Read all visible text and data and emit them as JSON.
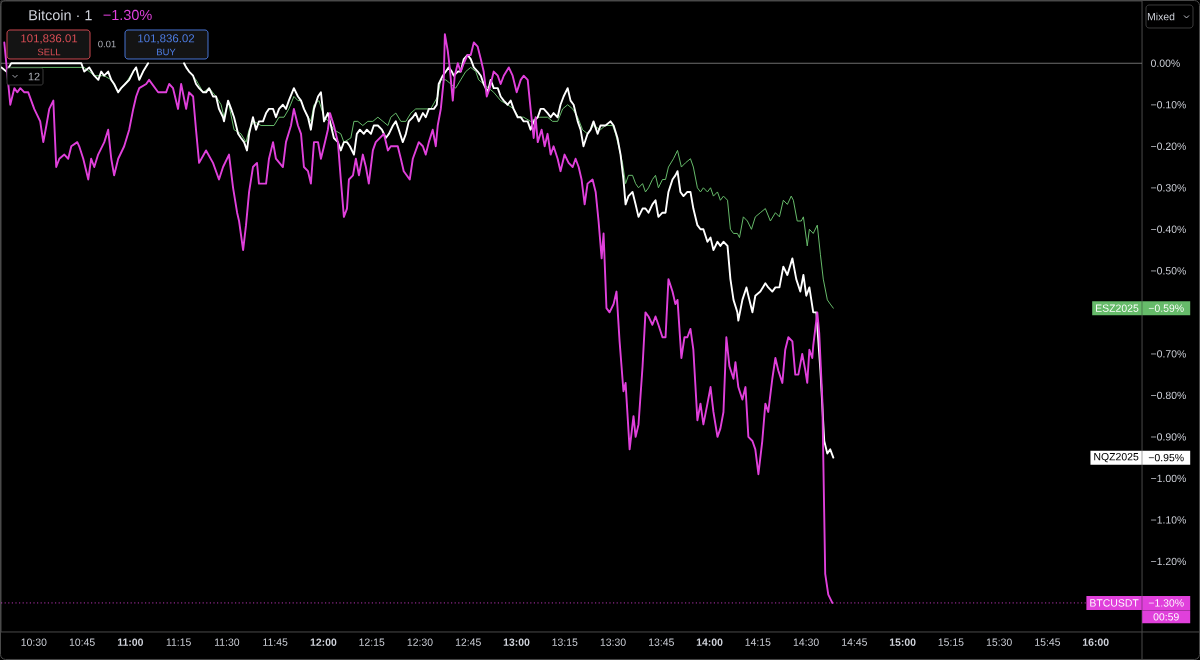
{
  "chart_data": {
    "type": "line",
    "title": "Bitcoin · 1",
    "subtitle": "−1.30%",
    "legend": "right",
    "xlim": [
      10.33,
      16.24
    ],
    "ylim": [
      -1.37,
      0.15
    ],
    "xticks": [
      {
        "value": 10.5,
        "label": "10:30"
      },
      {
        "value": 10.75,
        "label": "10:45"
      },
      {
        "value": 11,
        "label": "11:00"
      },
      {
        "value": 11.25,
        "label": "11:15"
      },
      {
        "value": 11.5,
        "label": "11:30"
      },
      {
        "value": 11.75,
        "label": "11:45"
      },
      {
        "value": 12,
        "label": "12:00"
      },
      {
        "value": 12.25,
        "label": "12:15"
      },
      {
        "value": 12.5,
        "label": "12:30"
      },
      {
        "value": 12.75,
        "label": "12:45"
      },
      {
        "value": 13,
        "label": "13:00"
      },
      {
        "value": 13.25,
        "label": "13:15"
      },
      {
        "value": 13.5,
        "label": "13:30"
      },
      {
        "value": 13.75,
        "label": "13:45"
      },
      {
        "value": 14,
        "label": "14:00"
      },
      {
        "value": 14.25,
        "label": "14:15"
      },
      {
        "value": 14.5,
        "label": "14:30"
      },
      {
        "value": 14.75,
        "label": "14:45"
      },
      {
        "value": 15,
        "label": "15:00"
      },
      {
        "value": 15.25,
        "label": "15:15"
      },
      {
        "value": 15.5,
        "label": "15:30"
      },
      {
        "value": 15.75,
        "label": "15:45"
      },
      {
        "value": 16,
        "label": "16:00"
      }
    ],
    "yticks": [
      {
        "value": 0,
        "label": "0.00%"
      },
      {
        "value": -0.1,
        "label": "−0.10%"
      },
      {
        "value": -0.2,
        "label": "−0.20%"
      },
      {
        "value": -0.3,
        "label": "−0.30%"
      },
      {
        "value": -0.4,
        "label": "−0.40%"
      },
      {
        "value": -0.5,
        "label": "−0.50%"
      },
      {
        "value": -0.7,
        "label": "−0.70%"
      },
      {
        "value": -0.8,
        "label": "−0.80%"
      },
      {
        "value": -0.9,
        "label": "−0.90%"
      },
      {
        "value": -1.0,
        "label": "−1.00%"
      },
      {
        "value": -1.1,
        "label": "−1.10%"
      },
      {
        "value": -1.2,
        "label": "−1.20%"
      }
    ],
    "ref_lines": [
      {
        "axis": "y",
        "value": 0,
        "color": "#8a8a8a"
      },
      {
        "axis": "y",
        "value": -1.3,
        "color": "#e040db",
        "line_style": "dotted"
      }
    ],
    "annotations": [
      "101,836.01",
      "SELL",
      "0.01",
      "101,836.02",
      "BUY",
      "12",
      "Mixed",
      "−0.59%",
      "−0.95%",
      "−1.30%",
      "00:59"
    ],
    "series": [
      {
        "name": "ESZ2025",
        "color": "#66bb6a",
        "x": [
          10.332,
          10.358,
          10.383,
          10.539,
          10.73,
          10.761,
          10.787,
          10.813,
          10.834,
          10.864,
          10.901,
          10.937,
          10.973,
          11.015,
          11.03,
          11.046,
          11.066,
          11.092,
          11.159,
          11.237,
          11.278,
          11.304,
          11.34,
          11.377,
          11.408,
          11.444,
          11.47,
          11.485,
          11.506,
          11.537,
          11.573,
          11.599,
          11.615,
          11.64,
          11.677,
          11.713,
          11.744,
          11.77,
          11.796,
          11.821,
          11.847,
          11.868,
          11.884,
          11.909,
          11.935,
          11.951,
          11.977,
          12.003,
          12.028,
          12.054,
          12.09,
          12.106,
          12.142,
          12.158,
          12.178,
          12.204,
          12.23,
          12.256,
          12.282,
          12.308,
          12.334,
          12.349,
          12.375,
          12.401,
          12.427,
          12.453,
          12.478,
          12.504,
          12.53,
          12.556,
          12.592,
          12.608,
          12.634,
          12.66,
          12.685,
          12.711,
          12.737,
          12.763,
          12.789,
          12.804,
          12.83,
          12.856,
          12.882,
          12.918,
          12.954,
          12.985,
          13.011,
          13.037,
          13.073,
          13.11,
          13.135,
          13.161,
          13.187,
          13.213,
          13.239,
          13.265,
          13.291,
          13.317,
          13.342,
          13.368,
          13.399,
          13.435,
          13.461,
          13.498,
          13.513,
          13.529,
          13.549,
          13.565,
          13.58,
          13.601,
          13.617,
          13.632,
          13.653,
          13.668,
          13.684,
          13.704,
          13.72,
          13.735,
          13.756,
          13.772,
          13.787,
          13.813,
          13.834,
          13.854,
          13.875,
          13.901,
          13.916,
          13.937,
          13.953,
          13.968,
          13.989,
          14.005,
          14.02,
          14.041,
          14.056,
          14.072,
          14.093,
          14.108,
          14.124,
          14.144,
          14.155,
          14.175,
          14.196,
          14.217,
          14.237,
          14.263,
          14.289,
          14.315,
          14.341,
          14.362,
          14.382,
          14.403,
          14.423,
          14.434,
          14.454,
          14.475,
          14.486,
          14.506,
          14.517,
          14.537,
          14.558,
          14.574,
          14.589,
          14.61,
          14.625,
          14.641
        ],
        "values": [
          -0.01,
          -0.02,
          -0.01,
          -0.01,
          -0.01,
          -0.01,
          -0.02,
          -0.03,
          -0.03,
          -0.03,
          -0.04,
          -0.07,
          -0.05,
          -0.02,
          -0.01,
          -0.04,
          -0.02,
          0.0,
          null,
          null,
          0.0,
          -0.02,
          -0.04,
          -0.07,
          -0.06,
          -0.08,
          -0.1,
          -0.13,
          -0.09,
          -0.16,
          -0.17,
          -0.19,
          -0.16,
          -0.14,
          -0.15,
          -0.15,
          -0.15,
          -0.13,
          -0.13,
          -0.11,
          -0.08,
          -0.09,
          -0.09,
          -0.12,
          -0.14,
          -0.1,
          -0.09,
          -0.13,
          -0.14,
          -0.16,
          -0.17,
          -0.19,
          -0.18,
          -0.14,
          -0.14,
          -0.15,
          -0.14,
          -0.14,
          -0.13,
          -0.14,
          -0.15,
          -0.13,
          -0.12,
          -0.14,
          -0.14,
          -0.12,
          -0.11,
          -0.11,
          -0.11,
          -0.11,
          -0.08,
          -0.04,
          -0.04,
          -0.05,
          -0.06,
          -0.04,
          -0.02,
          -0.01,
          -0.02,
          -0.04,
          -0.05,
          -0.06,
          -0.07,
          -0.09,
          -0.1,
          -0.11,
          -0.13,
          -0.13,
          -0.14,
          -0.13,
          -0.13,
          -0.13,
          -0.14,
          -0.14,
          -0.11,
          -0.1,
          -0.11,
          -0.13,
          -0.16,
          -0.17,
          -0.15,
          -0.16,
          -0.15,
          -0.15,
          -0.17,
          -0.2,
          -0.24,
          -0.29,
          -0.27,
          -0.27,
          -0.29,
          -0.3,
          -0.29,
          -0.31,
          -0.3,
          -0.28,
          -0.27,
          -0.3,
          -0.28,
          -0.28,
          -0.25,
          -0.23,
          -0.21,
          -0.25,
          -0.24,
          -0.23,
          -0.25,
          -0.3,
          -0.31,
          -0.3,
          -0.31,
          -0.3,
          -0.32,
          -0.31,
          -0.33,
          -0.32,
          -0.33,
          -0.4,
          -0.41,
          -0.41,
          -0.42,
          -0.37,
          -0.38,
          -0.4,
          -0.37,
          -0.36,
          -0.35,
          -0.38,
          -0.36,
          -0.37,
          -0.33,
          -0.34,
          -0.32,
          -0.33,
          -0.38,
          -0.38,
          -0.37,
          -0.44,
          -0.4,
          -0.41,
          -0.39,
          -0.46,
          -0.52,
          -0.57,
          -0.58,
          -0.59
        ]
      },
      {
        "name": "NQZ2025",
        "color": "#ffffff",
        "x": [
          10.332,
          10.358,
          10.383,
          10.539,
          10.72,
          10.746,
          10.761,
          10.787,
          10.813,
          10.834,
          10.849,
          10.864,
          10.885,
          10.901,
          10.916,
          10.937,
          10.952,
          10.973,
          10.994,
          11.015,
          11.03,
          11.046,
          11.066,
          11.092,
          11.134,
          11.185,
          11.237,
          11.278,
          11.289,
          11.304,
          11.325,
          11.34,
          11.356,
          11.377,
          11.392,
          11.408,
          11.428,
          11.444,
          11.459,
          11.48,
          11.485,
          11.506,
          11.522,
          11.537,
          11.558,
          11.573,
          11.589,
          11.604,
          11.615,
          11.635,
          11.651,
          11.666,
          11.687,
          11.703,
          11.718,
          11.739,
          11.754,
          11.77,
          11.79,
          11.806,
          11.821,
          11.847,
          11.868,
          11.884,
          11.899,
          11.92,
          11.935,
          11.951,
          11.972,
          11.987,
          12.003,
          12.023,
          12.039,
          12.054,
          12.075,
          12.09,
          12.106,
          12.122,
          12.137,
          12.158,
          12.173,
          12.189,
          12.209,
          12.225,
          12.246,
          12.261,
          12.282,
          12.303,
          12.323,
          12.339,
          12.36,
          12.375,
          12.39,
          12.411,
          12.427,
          12.442,
          12.463,
          12.478,
          12.494,
          12.515,
          12.53,
          12.546,
          12.572,
          12.587,
          12.597,
          12.618,
          12.634,
          12.649,
          12.665,
          12.675,
          12.696,
          12.711,
          12.727,
          12.747,
          12.763,
          12.779,
          12.799,
          12.815,
          12.83,
          12.851,
          12.866,
          12.882,
          12.903,
          12.918,
          12.934,
          12.954,
          12.97,
          12.985,
          13.006,
          13.022,
          13.037,
          13.058,
          13.073,
          13.089,
          13.11,
          13.125,
          13.141,
          13.161,
          13.177,
          13.192,
          13.213,
          13.228,
          13.244,
          13.265,
          13.28,
          13.296,
          13.317,
          13.332,
          13.347,
          13.368,
          13.384,
          13.399,
          13.42,
          13.435,
          13.461,
          13.487,
          13.503,
          13.523,
          13.539,
          13.554,
          13.565,
          13.58,
          13.601,
          13.617,
          13.632,
          13.653,
          13.668,
          13.684,
          13.704,
          13.72,
          13.735,
          13.756,
          13.772,
          13.787,
          13.808,
          13.823,
          13.834,
          13.849,
          13.865,
          13.885,
          13.901,
          13.916,
          13.937,
          13.953,
          13.968,
          13.989,
          14.005,
          14.02,
          14.041,
          14.056,
          14.072,
          14.093,
          14.108,
          14.124,
          14.144,
          14.149,
          14.17,
          14.191,
          14.201,
          14.222,
          14.237,
          14.263,
          14.289,
          14.304,
          14.325,
          14.341,
          14.362,
          14.382,
          14.403,
          14.429,
          14.449,
          14.47,
          14.486,
          14.501,
          14.517,
          14.537,
          14.553,
          14.574,
          14.594,
          14.61,
          14.625,
          14.641
        ],
        "values": [
          -0.01,
          -0.02,
          0.0,
          0.0,
          0.0,
          0.0,
          -0.02,
          -0.01,
          -0.03,
          -0.04,
          -0.02,
          -0.03,
          -0.02,
          -0.04,
          -0.05,
          -0.07,
          -0.06,
          -0.05,
          -0.04,
          -0.02,
          -0.01,
          -0.04,
          -0.02,
          0.0,
          null,
          null,
          null,
          0.0,
          -0.01,
          -0.02,
          -0.03,
          -0.05,
          -0.06,
          -0.07,
          -0.07,
          -0.06,
          -0.08,
          -0.08,
          -0.11,
          -0.13,
          -0.14,
          -0.09,
          -0.11,
          -0.13,
          -0.17,
          -0.18,
          -0.19,
          -0.21,
          -0.17,
          -0.13,
          -0.16,
          -0.14,
          -0.14,
          -0.12,
          -0.11,
          -0.11,
          -0.13,
          -0.11,
          -0.1,
          -0.11,
          -0.09,
          -0.06,
          -0.08,
          -0.09,
          -0.11,
          -0.13,
          -0.16,
          -0.11,
          -0.08,
          -0.07,
          -0.14,
          -0.12,
          -0.15,
          -0.18,
          -0.19,
          -0.21,
          -0.19,
          -0.19,
          -0.2,
          -0.22,
          -0.17,
          -0.16,
          -0.17,
          -0.16,
          -0.17,
          -0.15,
          -0.15,
          -0.16,
          -0.18,
          -0.17,
          -0.15,
          -0.14,
          -0.16,
          -0.19,
          -0.17,
          -0.14,
          -0.13,
          -0.12,
          -0.14,
          -0.12,
          -0.13,
          -0.11,
          -0.11,
          -0.1,
          -0.05,
          -0.03,
          -0.02,
          -0.01,
          -0.02,
          -0.03,
          -0.02,
          -0.02,
          0.01,
          0.02,
          0.01,
          -0.01,
          -0.02,
          -0.03,
          -0.05,
          -0.07,
          -0.04,
          -0.06,
          -0.06,
          -0.08,
          -0.09,
          -0.1,
          -0.09,
          -0.11,
          -0.13,
          -0.13,
          -0.14,
          -0.14,
          -0.16,
          -0.14,
          -0.13,
          -0.11,
          -0.11,
          -0.12,
          -0.13,
          -0.12,
          -0.13,
          -0.1,
          -0.08,
          -0.06,
          -0.09,
          -0.1,
          -0.14,
          -0.16,
          -0.2,
          -0.17,
          -0.16,
          -0.14,
          -0.17,
          -0.15,
          -0.15,
          -0.14,
          -0.15,
          -0.18,
          -0.22,
          -0.28,
          -0.34,
          -0.32,
          -0.31,
          -0.34,
          -0.37,
          -0.35,
          -0.35,
          -0.36,
          -0.34,
          -0.33,
          -0.37,
          -0.36,
          -0.36,
          -0.31,
          -0.28,
          -0.27,
          -0.26,
          -0.31,
          -0.32,
          -0.31,
          -0.31,
          -0.35,
          -0.39,
          -0.4,
          -0.4,
          -0.43,
          -0.42,
          -0.45,
          -0.43,
          -0.44,
          -0.43,
          -0.44,
          -0.52,
          -0.57,
          -0.6,
          -0.62,
          -0.57,
          -0.54,
          -0.56,
          -0.6,
          -0.56,
          -0.55,
          -0.53,
          -0.54,
          -0.55,
          -0.54,
          -0.54,
          -0.49,
          -0.51,
          -0.47,
          -0.52,
          -0.55,
          -0.51,
          -0.56,
          -0.54,
          -0.6,
          -0.6,
          -0.74,
          -0.91,
          -0.94,
          -0.93,
          -0.95
        ]
      },
      {
        "name": "BTCUSDT",
        "color": "#e040db",
        "x": [
          10.347,
          10.378,
          10.399,
          10.414,
          10.43,
          10.451,
          10.471,
          10.502,
          10.533,
          10.549,
          10.565,
          10.58,
          10.601,
          10.616,
          10.632,
          10.658,
          10.678,
          10.694,
          10.725,
          10.735,
          10.756,
          10.782,
          10.797,
          10.813,
          10.833,
          10.865,
          10.885,
          10.901,
          10.916,
          10.937,
          10.968,
          10.994,
          11.015,
          11.03,
          11.046,
          11.082,
          11.097,
          11.144,
          11.185,
          11.201,
          11.221,
          11.247,
          11.263,
          11.289,
          11.304,
          11.325,
          11.34,
          11.356,
          11.392,
          11.428,
          11.459,
          11.48,
          11.511,
          11.532,
          11.553,
          11.563,
          11.584,
          11.599,
          11.615,
          11.635,
          11.656,
          11.666,
          11.703,
          11.718,
          11.739,
          11.754,
          11.79,
          11.806,
          11.832,
          11.847,
          11.868,
          11.884,
          11.899,
          11.92,
          11.935,
          11.951,
          11.972,
          11.987,
          12.003,
          12.023,
          12.034,
          12.054,
          12.075,
          12.09,
          12.106,
          12.122,
          12.132,
          12.153,
          12.168,
          12.184,
          12.204,
          12.22,
          12.235,
          12.256,
          12.271,
          12.313,
          12.334,
          12.349,
          12.385,
          12.401,
          12.416,
          12.447,
          12.463,
          12.494,
          12.515,
          12.53,
          12.546,
          12.566,
          12.582,
          12.592,
          12.608,
          12.623,
          12.629,
          12.644,
          12.654,
          12.67,
          12.68,
          12.696,
          12.711,
          12.727,
          12.747,
          12.763,
          12.779,
          12.799,
          12.815,
          12.83,
          12.846,
          12.861,
          12.882,
          12.903,
          12.918,
          12.934,
          12.96,
          12.98,
          13.001,
          13.022,
          13.037,
          13.058,
          13.073,
          13.089,
          13.099,
          13.11,
          13.13,
          13.146,
          13.161,
          13.177,
          13.192,
          13.213,
          13.228,
          13.249,
          13.27,
          13.291,
          13.306,
          13.322,
          13.337,
          13.353,
          13.368,
          13.394,
          13.41,
          13.425,
          13.441,
          13.451,
          13.466,
          13.482,
          13.503,
          13.518,
          13.534,
          13.554,
          13.565,
          13.586,
          13.606,
          13.617,
          13.632,
          13.653,
          13.668,
          13.684,
          13.704,
          13.72,
          13.735,
          13.756,
          13.772,
          13.787,
          13.808,
          13.823,
          13.834,
          13.854,
          13.87,
          13.885,
          13.901,
          13.916,
          13.937,
          13.953,
          13.968,
          13.989,
          14.005,
          14.02,
          14.041,
          14.056,
          14.072,
          14.087,
          14.103,
          14.124,
          14.134,
          14.149,
          14.17,
          14.186,
          14.201,
          14.222,
          14.237,
          14.253,
          14.273,
          14.289,
          14.304,
          14.325,
          14.341,
          14.356,
          14.377,
          14.392,
          14.408,
          14.429,
          14.444,
          14.46,
          14.48,
          14.496,
          14.506,
          14.517,
          14.532,
          14.537,
          14.558,
          14.568,
          14.584,
          14.599,
          14.615,
          14.636
        ],
        "values": [
          0.05,
          -0.1,
          -0.06,
          -0.07,
          -0.06,
          -0.07,
          -0.07,
          -0.11,
          -0.14,
          -0.19,
          -0.15,
          -0.11,
          -0.09,
          -0.25,
          -0.23,
          -0.22,
          -0.23,
          -0.2,
          -0.19,
          -0.2,
          -0.23,
          -0.28,
          -0.23,
          -0.25,
          -0.22,
          -0.19,
          -0.16,
          -0.23,
          -0.27,
          -0.23,
          -0.2,
          -0.16,
          -0.11,
          -0.08,
          -0.06,
          -0.05,
          -0.04,
          -0.07,
          -0.07,
          -0.05,
          -0.06,
          -0.11,
          -0.05,
          -0.11,
          -0.07,
          -0.08,
          -0.16,
          -0.24,
          -0.21,
          -0.24,
          -0.28,
          -0.25,
          -0.22,
          -0.3,
          -0.36,
          -0.38,
          -0.45,
          -0.39,
          -0.31,
          -0.25,
          -0.24,
          -0.29,
          -0.29,
          -0.23,
          -0.19,
          -0.23,
          -0.25,
          -0.19,
          -0.15,
          -0.11,
          -0.15,
          -0.17,
          -0.25,
          -0.26,
          -0.29,
          -0.19,
          -0.19,
          -0.23,
          -0.2,
          -0.16,
          -0.12,
          -0.15,
          -0.19,
          -0.28,
          -0.37,
          -0.35,
          -0.28,
          -0.27,
          -0.23,
          -0.27,
          -0.22,
          -0.25,
          -0.29,
          -0.21,
          -0.19,
          -0.17,
          -0.21,
          -0.2,
          -0.2,
          -0.23,
          -0.26,
          -0.28,
          -0.23,
          -0.19,
          -0.2,
          -0.22,
          -0.19,
          -0.16,
          -0.2,
          -0.15,
          -0.11,
          -0.04,
          0.07,
          0.03,
          -0.01,
          -0.09,
          -0.03,
          0.0,
          -0.02,
          0.0,
          0.02,
          0.02,
          0.05,
          0.04,
          0.01,
          -0.02,
          -0.08,
          -0.06,
          -0.02,
          -0.03,
          -0.05,
          -0.03,
          -0.01,
          -0.03,
          -0.07,
          -0.04,
          -0.03,
          -0.04,
          -0.11,
          -0.18,
          -0.13,
          -0.19,
          -0.16,
          -0.2,
          -0.17,
          -0.22,
          -0.2,
          -0.23,
          -0.26,
          -0.22,
          -0.24,
          -0.25,
          -0.23,
          -0.25,
          -0.28,
          -0.34,
          -0.29,
          -0.28,
          -0.31,
          -0.38,
          -0.47,
          -0.41,
          -0.59,
          -0.6,
          -0.58,
          -0.55,
          -0.67,
          -0.79,
          -0.77,
          -0.93,
          -0.85,
          -0.9,
          -0.87,
          -0.73,
          -0.6,
          -0.61,
          -0.63,
          -0.61,
          -0.63,
          -0.66,
          -0.66,
          -0.52,
          -0.55,
          -0.58,
          -0.57,
          -0.71,
          -0.66,
          -0.66,
          -0.64,
          -0.69,
          -0.86,
          -0.82,
          -0.87,
          -0.82,
          -0.78,
          -0.84,
          -0.9,
          -0.88,
          -0.84,
          -0.66,
          -0.73,
          -0.76,
          -0.72,
          -0.78,
          -0.81,
          -0.78,
          -0.9,
          -0.91,
          -0.93,
          -0.99,
          -0.91,
          -0.82,
          -0.84,
          -0.76,
          -0.71,
          -0.74,
          -0.77,
          -0.69,
          -0.66,
          -0.67,
          -0.75,
          -0.75,
          -0.7,
          -0.74,
          -0.77,
          -0.69,
          -0.71,
          -0.68,
          -0.6,
          -0.65,
          -0.81,
          -1.23,
          -1.28,
          -1.3
        ]
      }
    ]
  }
}
